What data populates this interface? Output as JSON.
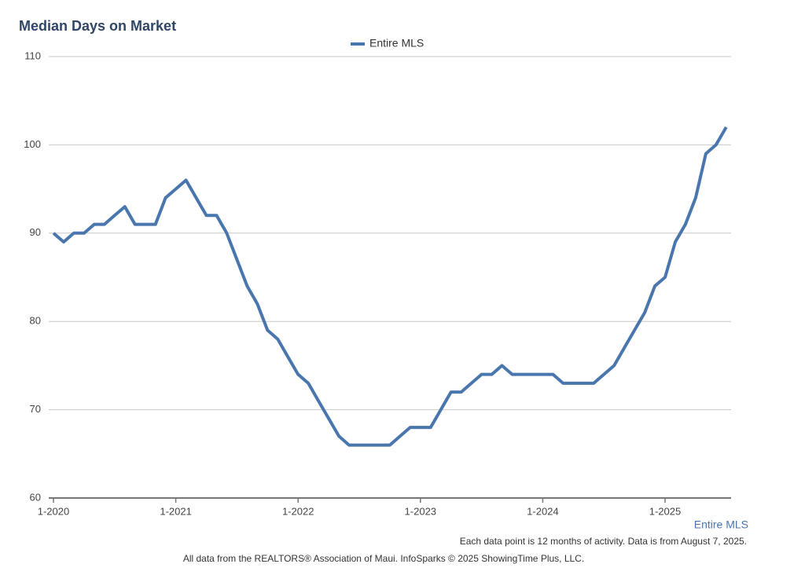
{
  "chart_data": {
    "type": "line",
    "title": "Median Days on Market",
    "x_label": "Entire MLS",
    "notes": [
      "Each data point is 12 months of activity. Data is from August 7, 2025.",
      "All data from the REALTORS® Association of Maui. InfoSparks © 2025 ShowingTime Plus, LLC."
    ],
    "categories": [
      "1-2020",
      null,
      null,
      null,
      null,
      null,
      null,
      null,
      null,
      null,
      null,
      null,
      "1-2021",
      null,
      null,
      null,
      null,
      null,
      null,
      null,
      null,
      null,
      null,
      null,
      "1-2022",
      null,
      null,
      null,
      null,
      null,
      null,
      null,
      null,
      null,
      null,
      null,
      "1-2023",
      null,
      null,
      null,
      null,
      null,
      null,
      null,
      null,
      null,
      null,
      null,
      "1-2024",
      null,
      null,
      null,
      null,
      null,
      null,
      null,
      null,
      null,
      null,
      null,
      "1-2025",
      null,
      null,
      null,
      null,
      null,
      null
    ],
    "series": [
      {
        "name": "Entire MLS",
        "color": "#4a76ae",
        "values": [
          90,
          89,
          90,
          90,
          91,
          91,
          92,
          93,
          91,
          91,
          91,
          94,
          95,
          96,
          94,
          92,
          92,
          90,
          87,
          84,
          82,
          79,
          78,
          76,
          74,
          73,
          71,
          69,
          67,
          66,
          66,
          66,
          66,
          66,
          67,
          68,
          68,
          68,
          70,
          72,
          72,
          73,
          74,
          74,
          75,
          74,
          74,
          74,
          74,
          74,
          73,
          73,
          73,
          73,
          74,
          75,
          77,
          79,
          81,
          84,
          85,
          89,
          91,
          94,
          99,
          100,
          102
        ]
      }
    ],
    "ylim": [
      60,
      110
    ],
    "yticks": [
      60,
      70,
      80,
      90,
      100,
      110
    ],
    "grid": true,
    "legend": "top"
  }
}
